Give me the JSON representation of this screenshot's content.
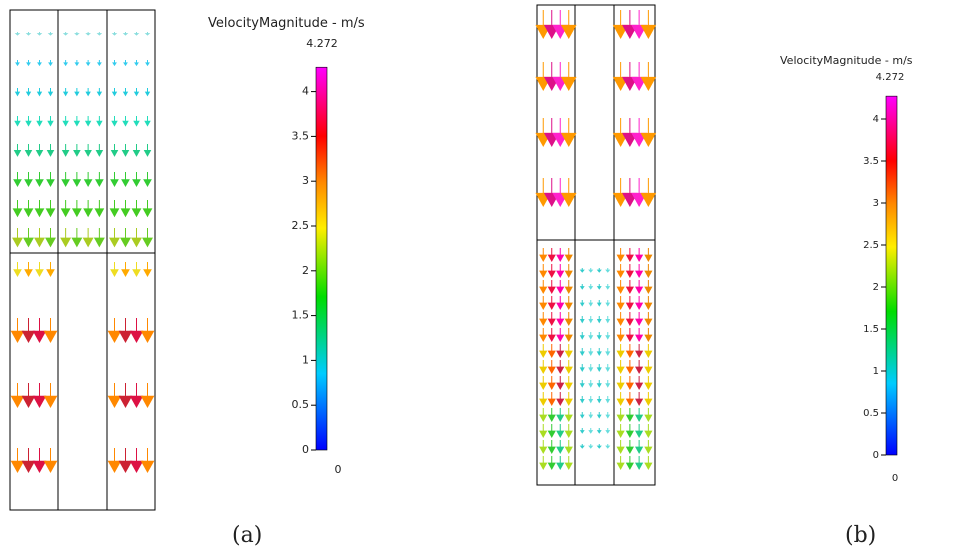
{
  "panels": [
    {
      "legend": {
        "title": "VelocityMagnitude  -  m/s",
        "max": 4.272,
        "min": 0,
        "ticks": [
          0,
          0.5,
          1,
          1.5,
          2,
          2.5,
          3,
          3.5,
          4
        ]
      },
      "caption": "(a)"
    },
    {
      "legend": {
        "title": "VelocityMagnitude  -  m/s",
        "max": 4.272,
        "min": 0,
        "ticks": [
          0,
          0.5,
          1,
          1.5,
          2,
          2.5,
          3,
          3.5,
          4
        ]
      },
      "caption": "(b)"
    }
  ]
}
